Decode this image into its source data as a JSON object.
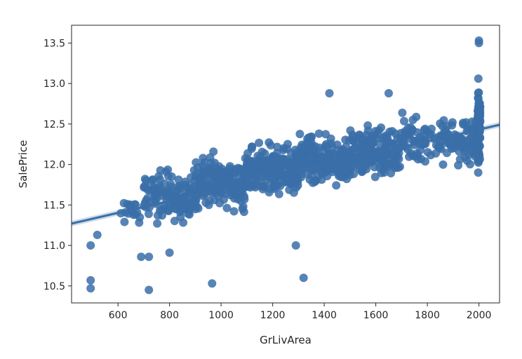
{
  "chart_data": {
    "type": "scatter",
    "title": "",
    "xlabel": "GrLivArea",
    "ylabel": "SalePrice",
    "xlim": [
      420,
      2080
    ],
    "ylim": [
      10.29,
      13.72
    ],
    "xticks": [
      600,
      800,
      1000,
      1200,
      1400,
      1600,
      1800,
      2000
    ],
    "xtick_labels": [
      "600",
      "800",
      "1000",
      "1200",
      "1400",
      "1600",
      "1800",
      "2000"
    ],
    "yticks": [
      10.5,
      11.0,
      11.5,
      12.0,
      12.5,
      13.0,
      13.5
    ],
    "ytick_labels": [
      "10.5",
      "11.0",
      "11.5",
      "12.0",
      "12.5",
      "13.0",
      "13.5"
    ],
    "grid": false,
    "legend": "none",
    "marker_color": "#3a6fa8",
    "regression_line": {
      "x": [
        420,
        2080
      ],
      "y": [
        11.27,
        12.49
      ],
      "color": "#3a6fa8"
    },
    "outliers": {
      "x": [
        494,
        494,
        494,
        520,
        720,
        690,
        720,
        800,
        965,
        1320,
        1290,
        1420,
        1650,
        2000,
        2000
      ],
      "y": [
        10.47,
        10.57,
        11.0,
        11.13,
        10.45,
        10.86,
        10.86,
        10.91,
        10.53,
        10.6,
        11.0,
        12.88,
        12.88,
        13.53,
        13.5
      ]
    },
    "clusters": [
      {
        "x_range": [
          600,
          700
        ],
        "y_center": 11.42,
        "y_spread": 0.15,
        "count": 18
      },
      {
        "x_range": [
          700,
          900
        ],
        "y_center": 11.6,
        "y_spread": 0.26,
        "count": 130
      },
      {
        "x_range": [
          900,
          1100
        ],
        "y_center": 11.78,
        "y_spread": 0.26,
        "count": 180
      },
      {
        "x_range": [
          1100,
          1300
        ],
        "y_center": 11.93,
        "y_spread": 0.25,
        "count": 220
      },
      {
        "x_range": [
          1300,
          1500
        ],
        "y_center": 12.05,
        "y_spread": 0.24,
        "count": 190
      },
      {
        "x_range": [
          1500,
          1700
        ],
        "y_center": 12.17,
        "y_spread": 0.25,
        "count": 170
      },
      {
        "x_range": [
          1700,
          1990
        ],
        "y_center": 12.3,
        "y_spread": 0.27,
        "count": 150
      },
      {
        "x_range": [
          1995,
          2005
        ],
        "y_center": 12.45,
        "y_spread": 0.38,
        "count": 110
      }
    ]
  }
}
